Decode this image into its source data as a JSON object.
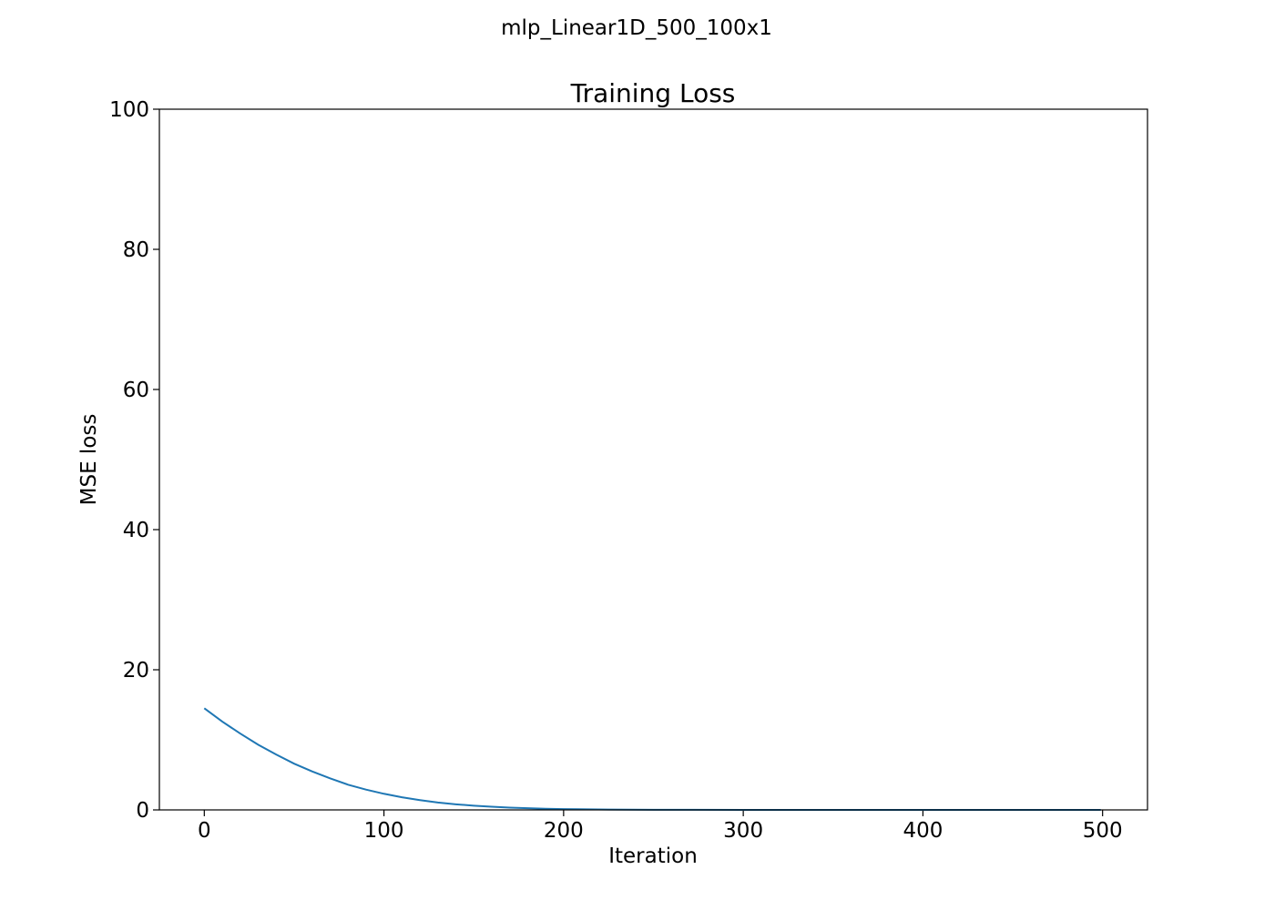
{
  "suptitle": "mlp_Linear1D_500_100x1",
  "chart_data": {
    "type": "line",
    "title": "Training Loss",
    "xlabel": "Iteration",
    "ylabel": "MSE loss",
    "xlim": [
      -25,
      525
    ],
    "ylim": [
      0,
      100
    ],
    "xticks": [
      0,
      100,
      200,
      300,
      400,
      500
    ],
    "yticks": [
      0,
      20,
      40,
      60,
      80,
      100
    ],
    "grid": false,
    "series": [
      {
        "color": "#1f77b4",
        "decay_points": {
          "x": [
            0,
            10,
            20,
            30,
            40,
            50,
            60,
            70,
            80,
            90,
            100,
            110,
            120,
            130,
            140,
            150,
            160,
            170,
            180,
            190,
            200,
            225,
            250,
            300,
            350,
            400,
            450,
            499
          ],
          "y": [
            14.5,
            12.6,
            10.9,
            9.3,
            7.9,
            6.6,
            5.5,
            4.5,
            3.6,
            2.9,
            2.3,
            1.8,
            1.4,
            1.05,
            0.8,
            0.6,
            0.45,
            0.33,
            0.24,
            0.17,
            0.12,
            0.05,
            0.02,
            0.004,
            0.001,
            0.0,
            0.0,
            0.0
          ]
        }
      }
    ]
  }
}
